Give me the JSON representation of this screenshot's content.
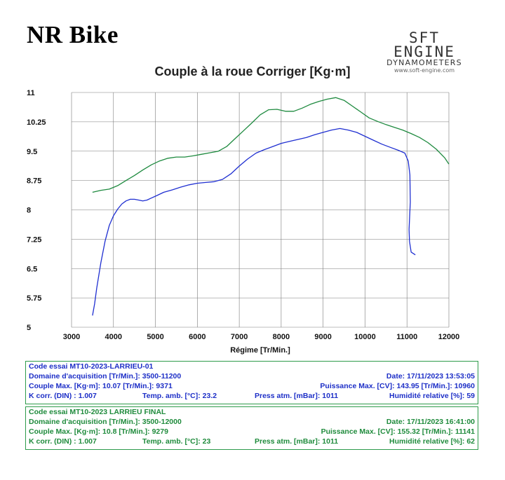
{
  "header": {
    "brand": "NR Bike",
    "logo_main": "SFT ENGINE",
    "logo_sub": "DYNAMOMETERS",
    "logo_url": "www.soft-engine.com"
  },
  "colors": {
    "run1": "#1f2fd1",
    "run2": "#1e8a3f",
    "grid": "#7a7a7a",
    "panel_border": "#2e9b4b"
  },
  "chart_data": {
    "type": "line",
    "title": "Couple à la roue Corriger [Kg·m]",
    "xlabel": "Régime [Tr/Min.]",
    "ylabel": "",
    "xlim": [
      3000,
      12000
    ],
    "ylim": [
      5,
      11
    ],
    "x_ticks": [
      "3000",
      "4000",
      "5000",
      "6000",
      "7000",
      "8000",
      "9000",
      "10000",
      "11000",
      "12000"
    ],
    "y_ticks": [
      "11",
      "10.25",
      "9.5",
      "8.75",
      "8",
      "7.25",
      "6.5",
      "5.75",
      "5"
    ],
    "grid": true,
    "series": [
      {
        "color": "#1e8a3f",
        "x": [
          3500,
          3700,
          3900,
          4100,
          4300,
          4500,
          4700,
          4900,
          5100,
          5300,
          5500,
          5700,
          5900,
          6100,
          6300,
          6500,
          6700,
          6900,
          7100,
          7300,
          7500,
          7700,
          7900,
          8100,
          8300,
          8500,
          8700,
          8900,
          9100,
          9300,
          9500,
          9700,
          9900,
          10100,
          10300,
          10500,
          10700,
          10900,
          11100,
          11300,
          11500,
          11700,
          11900,
          12000
        ],
        "y": [
          8.45,
          8.5,
          8.53,
          8.62,
          8.75,
          8.88,
          9.02,
          9.15,
          9.25,
          9.32,
          9.35,
          9.35,
          9.38,
          9.42,
          9.46,
          9.5,
          9.62,
          9.82,
          10.02,
          10.22,
          10.43,
          10.56,
          10.57,
          10.52,
          10.52,
          10.6,
          10.7,
          10.77,
          10.83,
          10.87,
          10.8,
          10.65,
          10.5,
          10.35,
          10.26,
          10.18,
          10.11,
          10.04,
          9.95,
          9.85,
          9.72,
          9.55,
          9.33,
          9.17
        ]
      },
      {
        "color": "#1f2fd1",
        "x": [
          3500,
          3550,
          3600,
          3700,
          3800,
          3900,
          4000,
          4100,
          4200,
          4300,
          4400,
          4500,
          4600,
          4700,
          4800,
          4900,
          5000,
          5200,
          5400,
          5600,
          5800,
          6000,
          6200,
          6400,
          6600,
          6800,
          7000,
          7200,
          7400,
          7600,
          7800,
          8000,
          8200,
          8400,
          8600,
          8800,
          9000,
          9200,
          9400,
          9600,
          9800,
          10000,
          10200,
          10400,
          10600,
          10800,
          10950,
          11030,
          11070,
          11080,
          11050,
          11060,
          11100,
          11200
        ],
        "y": [
          5.3,
          5.6,
          6.0,
          6.65,
          7.2,
          7.6,
          7.85,
          8.02,
          8.15,
          8.23,
          8.27,
          8.27,
          8.25,
          8.23,
          8.25,
          8.3,
          8.35,
          8.45,
          8.51,
          8.58,
          8.64,
          8.68,
          8.7,
          8.72,
          8.78,
          8.92,
          9.12,
          9.3,
          9.45,
          9.54,
          9.62,
          9.7,
          9.75,
          9.8,
          9.85,
          9.92,
          9.98,
          10.04,
          10.08,
          10.04,
          9.98,
          9.88,
          9.78,
          9.68,
          9.6,
          9.52,
          9.45,
          9.25,
          8.9,
          8.2,
          7.5,
          7.2,
          6.92,
          6.85
        ]
      }
    ]
  },
  "runs": [
    {
      "code": "Code essai  MT10-2023-LARRIEU-01",
      "domain": "Domaine d'acquisition [Tr/Min.]: 3500-11200",
      "date": "Date: 17/11/2023   13:53:05",
      "couple_max": "Couple Max. [Kg·m]: 10.07  [Tr/Min.]: 9371",
      "puissance_max": "Puissance Max. [CV]: 143.95  [Tr/Min.]: 10960",
      "kcorr": "K corr. (DIN) : 1.007",
      "temp": "Temp. amb. [°C]: 23.2",
      "press": "Press atm. [mBar]: 1011",
      "humid": "Humidité relative [%]: 59"
    },
    {
      "code": "Code essai  MT10-2023 LARRIEU FINAL",
      "domain": "Domaine d'acquisition [Tr/Min.]: 3500-12000",
      "date": "Date: 17/11/2023   16:41:00",
      "couple_max": "Couple Max. [Kg·m]: 10.8   [Tr/Min.]: 9279",
      "puissance_max": "Puissance Max. [CV]: 155.32  [Tr/Min.]: 11141",
      "kcorr": "K corr. (DIN) : 1.007",
      "temp": "Temp. amb. [°C]: 23",
      "press": "Press atm. [mBar]: 1011",
      "humid": "Humidité relative [%]: 62"
    }
  ]
}
